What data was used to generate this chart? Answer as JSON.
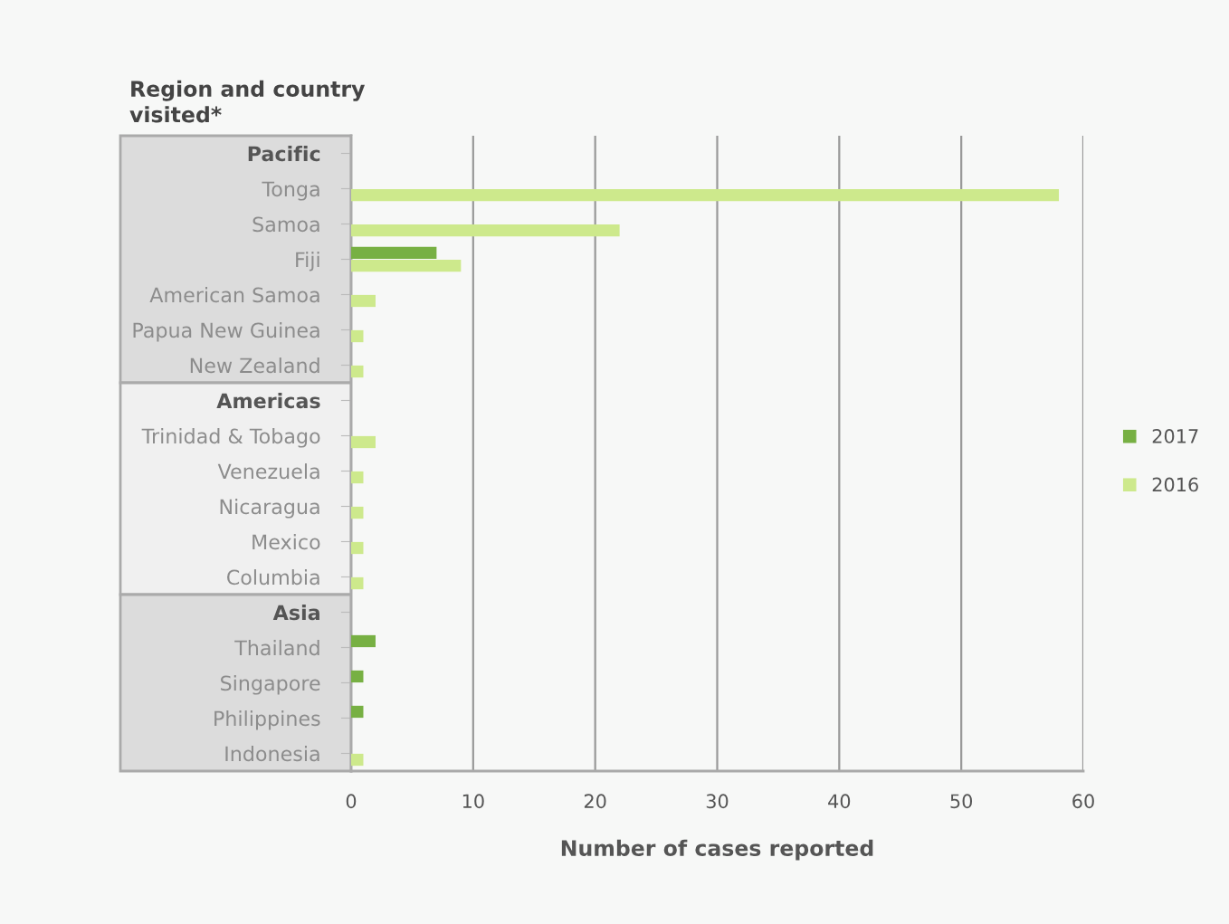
{
  "chart_data": {
    "type": "bar",
    "orientation": "horizontal",
    "ylabel": "Region and country\nvisited*",
    "xlabel": "Number of cases reported",
    "categories": [
      "Pacific",
      "Tonga",
      "Samoa",
      "Fiji",
      "American Samoa",
      "Papua New Guinea",
      "New Zealand",
      "Americas",
      "Trinidad & Tobago",
      "Venezuela",
      "Nicaragua",
      "Mexico",
      "Columbia",
      "Asia",
      "Thailand",
      "Singapore",
      "Philippines",
      "Indonesia"
    ],
    "series": [
      {
        "name": "2017",
        "color": "#77b043",
        "values": [
          null,
          null,
          null,
          7,
          null,
          null,
          null,
          null,
          null,
          null,
          null,
          null,
          null,
          null,
          2,
          1,
          1,
          null
        ]
      },
      {
        "name": "2016",
        "color": "#cde98c",
        "values": [
          null,
          58,
          22,
          9,
          2,
          1,
          1,
          null,
          2,
          1,
          1,
          1,
          1,
          null,
          null,
          null,
          null,
          1
        ]
      }
    ],
    "xlim": [
      0,
      60
    ],
    "xticks": [
      0,
      10,
      20,
      30,
      40,
      50,
      60
    ],
    "grid": "x",
    "legend": "right"
  }
}
